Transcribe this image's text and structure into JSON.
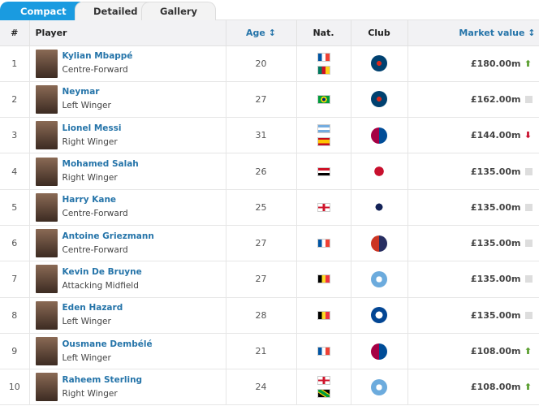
{
  "tabs": [
    {
      "label": "Compact",
      "active": true
    },
    {
      "label": "Detailed"
    },
    {
      "label": "Gallery"
    }
  ],
  "headers": {
    "num": "#",
    "player": "Player",
    "age": "Age ↕",
    "nat": "Nat.",
    "club": "Club",
    "market": "Market value ↕"
  },
  "colors": {
    "accent": "#1a9be0",
    "link": "#2574a9",
    "up": "#5a9e2f",
    "down": "#c8102e"
  },
  "rows": [
    {
      "n": "1",
      "name": "Kylian Mbappé",
      "pos": "Centre-Forward",
      "age": "20",
      "nat": [
        "france",
        "cameroon"
      ],
      "club": "psg",
      "value": "£180.00m",
      "trend": "up"
    },
    {
      "n": "2",
      "name": "Neymar",
      "pos": "Left Winger",
      "age": "27",
      "nat": [
        "brazil"
      ],
      "club": "psg",
      "value": "£162.00m",
      "trend": "same"
    },
    {
      "n": "3",
      "name": "Lionel Messi",
      "pos": "Right Winger",
      "age": "31",
      "nat": [
        "argentina",
        "spain"
      ],
      "club": "barcelona",
      "value": "£144.00m",
      "trend": "down"
    },
    {
      "n": "4",
      "name": "Mohamed Salah",
      "pos": "Right Winger",
      "age": "26",
      "nat": [
        "egypt"
      ],
      "club": "liverpool",
      "value": "£135.00m",
      "trend": "same"
    },
    {
      "n": "5",
      "name": "Harry Kane",
      "pos": "Centre-Forward",
      "age": "25",
      "nat": [
        "england"
      ],
      "club": "tottenham",
      "value": "£135.00m",
      "trend": "same"
    },
    {
      "n": "6",
      "name": "Antoine Griezmann",
      "pos": "Centre-Forward",
      "age": "27",
      "nat": [
        "france"
      ],
      "club": "atletico",
      "value": "£135.00m",
      "trend": "same"
    },
    {
      "n": "7",
      "name": "Kevin De Bruyne",
      "pos": "Attacking Midfield",
      "age": "27",
      "nat": [
        "belgium"
      ],
      "club": "mancity",
      "value": "£135.00m",
      "trend": "same"
    },
    {
      "n": "8",
      "name": "Eden Hazard",
      "pos": "Left Winger",
      "age": "28",
      "nat": [
        "belgium"
      ],
      "club": "chelsea",
      "value": "£135.00m",
      "trend": "same"
    },
    {
      "n": "9",
      "name": "Ousmane Dembélé",
      "pos": "Left Winger",
      "age": "21",
      "nat": [
        "france"
      ],
      "club": "barcelona",
      "value": "£108.00m",
      "trend": "up"
    },
    {
      "n": "10",
      "name": "Raheem Sterling",
      "pos": "Right Winger",
      "age": "24",
      "nat": [
        "england",
        "jamaica"
      ],
      "club": "mancity",
      "value": "£108.00m",
      "trend": "up"
    }
  ]
}
